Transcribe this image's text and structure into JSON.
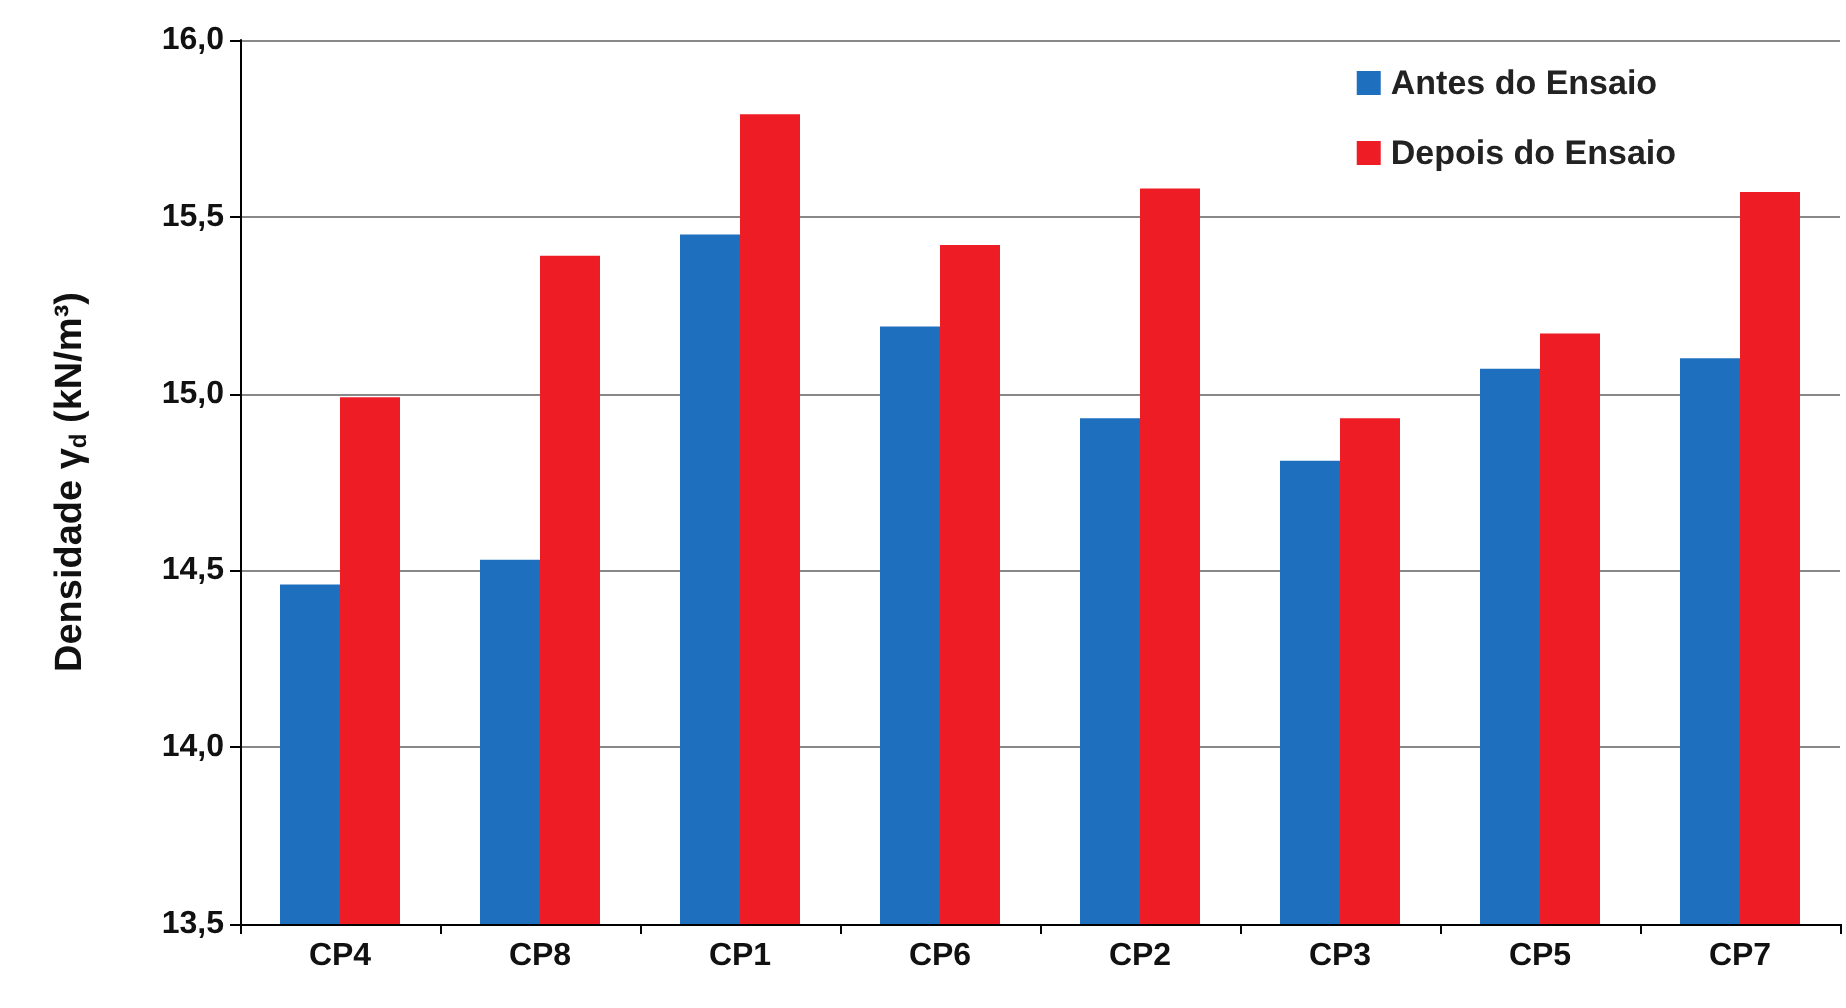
{
  "chart_data": {
    "type": "bar",
    "ylabel": "Densidade γ$_{d}$ (kN/m³)",
    "categories": [
      "CP4",
      "CP8",
      "CP1",
      "CP6",
      "CP2",
      "CP3",
      "CP5",
      "CP7"
    ],
    "series": [
      {
        "name": "Antes do Ensaio",
        "color": "#1f6fbf",
        "values": [
          14.46,
          14.53,
          15.45,
          15.19,
          14.93,
          14.81,
          15.07,
          15.1
        ]
      },
      {
        "name": "Depois do Ensaio",
        "color": "#ee1c25",
        "values": [
          14.99,
          15.39,
          15.79,
          15.42,
          15.58,
          14.93,
          15.17,
          15.57
        ]
      }
    ],
    "ylim": [
      13.5,
      16.0
    ],
    "yticks": [
      {
        "value": 13.5,
        "label": "13,5"
      },
      {
        "value": 14.0,
        "label": "14,0"
      },
      {
        "value": 14.5,
        "label": "14,5"
      },
      {
        "value": 15.0,
        "label": "15,0"
      },
      {
        "value": 15.5,
        "label": "15,5"
      },
      {
        "value": 16.0,
        "label": "16,0"
      }
    ],
    "grid": "y",
    "legend": "top right"
  }
}
